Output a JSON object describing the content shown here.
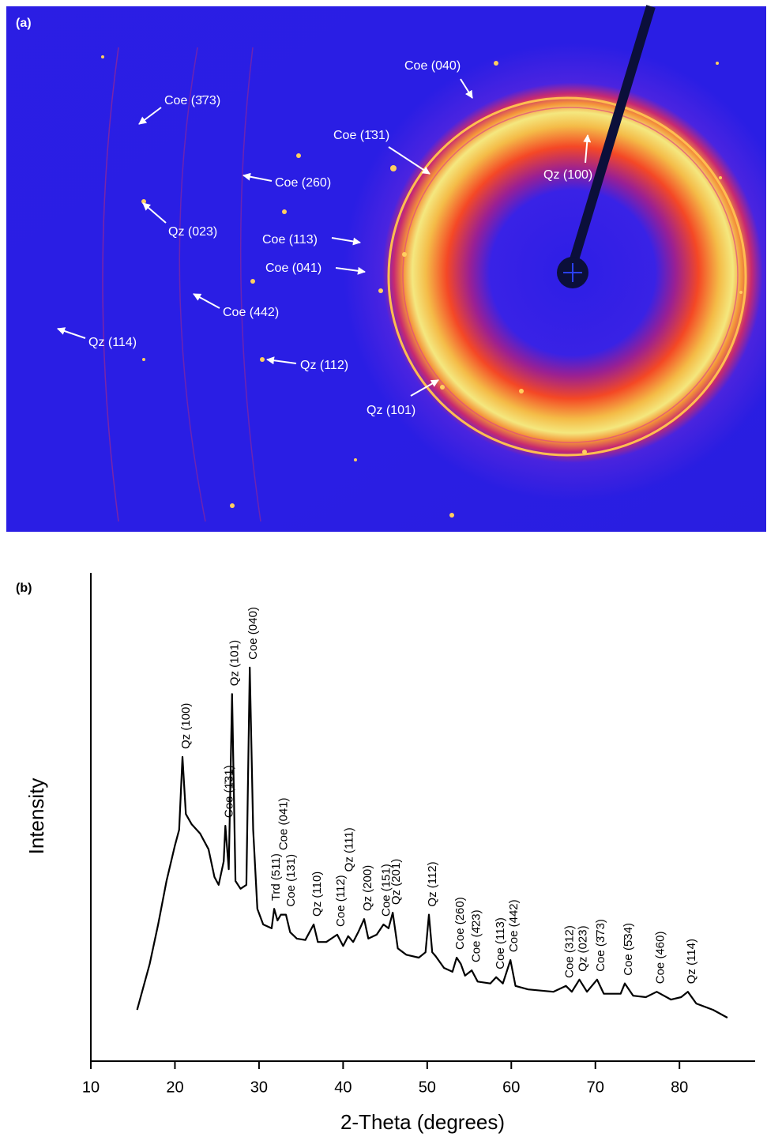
{
  "image_panel": {
    "label": "(a)",
    "annotations": [
      "Coe (040)",
      "Coe (3̄73)",
      "Coe (1̄31)",
      "Qz (100)",
      "Coe (260)",
      "Qz (023)",
      "Coe (113)",
      "Coe (041)",
      "Coe (442)",
      "Qz (114)",
      "Qz (112)",
      "Qz (101)"
    ]
  },
  "chart_data": {
    "type": "line",
    "panel_label": "(b)",
    "xlabel": "2-Theta (degrees)",
    "ylabel": "Intensity",
    "xlim": [
      10,
      89
    ],
    "xticks": [
      10,
      20,
      30,
      40,
      50,
      60,
      70,
      80
    ],
    "ylim": [
      0,
      100
    ],
    "color": "#000000",
    "x": [
      15.5,
      17,
      18,
      19,
      20,
      20.5,
      20.9,
      21.3,
      22,
      23,
      24,
      24.7,
      25.2,
      25.8,
      26.0,
      26.4,
      26.8,
      27.2,
      27.8,
      28.5,
      28.9,
      29.3,
      29.8,
      30.5,
      31.5,
      31.8,
      32.2,
      32.6,
      33.2,
      33.7,
      34.5,
      35.5,
      36.5,
      37,
      38,
      39.3,
      40,
      40.6,
      41.2,
      41.8,
      42.5,
      43,
      44,
      44.8,
      45.4,
      45.9,
      46.5,
      47.5,
      49,
      49.8,
      50.2,
      50.6,
      51,
      52,
      53,
      53.5,
      54,
      54.5,
      55.3,
      56,
      57.5,
      58.2,
      59,
      59.9,
      60.5,
      62,
      65,
      66.5,
      67.2,
      68.1,
      69,
      70.2,
      71,
      73,
      73.5,
      74.5,
      76,
      77.3,
      79,
      80.2,
      81,
      82,
      84,
      85.7
    ],
    "values": [
      10.5,
      19.9,
      28,
      36.9,
      44.2,
      47.4,
      62.3,
      50.6,
      48.5,
      46.6,
      43.4,
      37.7,
      36.1,
      40.9,
      48.2,
      39.3,
      75.2,
      36.9,
      35.3,
      36.1,
      80.6,
      47.4,
      31.2,
      28,
      27.2,
      31.2,
      28.8,
      30,
      30,
      26.4,
      25.1,
      24.8,
      28,
      24.4,
      24.4,
      25.9,
      23.6,
      25.6,
      24.4,
      26.4,
      29.1,
      25.1,
      25.9,
      28,
      27.2,
      30.4,
      23.1,
      21.8,
      21.2,
      22.3,
      30,
      22.3,
      21.5,
      19.1,
      18.3,
      21.2,
      19.9,
      17.5,
      18.6,
      16.3,
      15.9,
      17.2,
      15.9,
      20.7,
      15.4,
      14.7,
      14.2,
      15.4,
      14.2,
      16.7,
      14.2,
      16.7,
      13.8,
      13.8,
      15.9,
      13.4,
      13.1,
      14.2,
      12.6,
      13.1,
      14.2,
      11.8,
      10.5,
      8.9
    ],
    "peak_labels": [
      {
        "label": "Qz (100)",
        "x": 20.9
      },
      {
        "label": "Coe (1̄31)",
        "x": 26.0
      },
      {
        "label": "Qz (101)",
        "x": 26.7
      },
      {
        "label": "Coe (040)",
        "x": 28.9
      },
      {
        "label": "Trd (511)",
        "x": 31.6
      },
      {
        "label": "Coe (131)",
        "x": 33.4
      },
      {
        "label": "Coe (041)",
        "x": 32.5
      },
      {
        "label": "Qz (110)",
        "x": 36.5
      },
      {
        "label": "Coe (112)",
        "x": 39.3
      },
      {
        "label": "Qz (200)",
        "x": 42.5
      },
      {
        "label": "Qz (111)",
        "x": 40.3
      },
      {
        "label": "Coe (151)",
        "x": 44.7
      },
      {
        "label": "Qz (201)",
        "x": 45.9
      },
      {
        "label": "Qz (112)",
        "x": 50.2
      },
      {
        "label": "Coe (260)",
        "x": 53.5
      },
      {
        "label": "Coe (4̄23)",
        "x": 55.4
      },
      {
        "label": "Coe (113)",
        "x": 58.3
      },
      {
        "label": "Coe (442)",
        "x": 59.9
      },
      {
        "label": "Coe (312)",
        "x": 66.5
      },
      {
        "label": "Qz (023)",
        "x": 68.1
      },
      {
        "label": "Coe (3̄73)",
        "x": 70.2
      },
      {
        "label": "Coe (5̄34)",
        "x": 73.5
      },
      {
        "label": "Coe (460)",
        "x": 77.3
      },
      {
        "label": "Qz (114)",
        "x": 81.0
      }
    ]
  }
}
